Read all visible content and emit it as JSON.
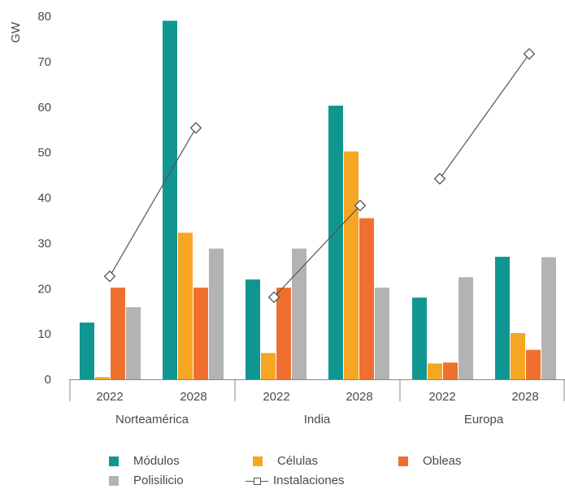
{
  "chart_data": {
    "type": "bar",
    "ylabel": "GW",
    "ylim": [
      0,
      80
    ],
    "yticks": [
      0,
      10,
      20,
      30,
      40,
      50,
      60,
      70,
      80
    ],
    "groups": [
      "Norteamérica",
      "India",
      "Europa"
    ],
    "years": [
      "2022",
      "2028"
    ],
    "series": [
      {
        "name": "Módulos",
        "color": "#0f9691",
        "values": [
          12.5,
          79,
          22,
          60.3,
          18,
          27
        ]
      },
      {
        "name": "Células",
        "color": "#f6a623",
        "values": [
          0.5,
          32.3,
          5.8,
          50.2,
          3.5,
          10.2
        ]
      },
      {
        "name": "Obleas",
        "color": "#ef6f2e",
        "values": [
          20.2,
          20.2,
          20.2,
          35.5,
          3.7,
          6.5
        ]
      },
      {
        "name": "Polisilicio",
        "color": "#b3b3b3",
        "values": [
          15.9,
          28.8,
          28.8,
          20.2,
          22.5,
          26.9
        ]
      }
    ],
    "line": {
      "name": "Instalaciones",
      "color": "#555555",
      "values": [
        22.7,
        55.4,
        18.1,
        38.3,
        44.2,
        71.7
      ]
    }
  }
}
